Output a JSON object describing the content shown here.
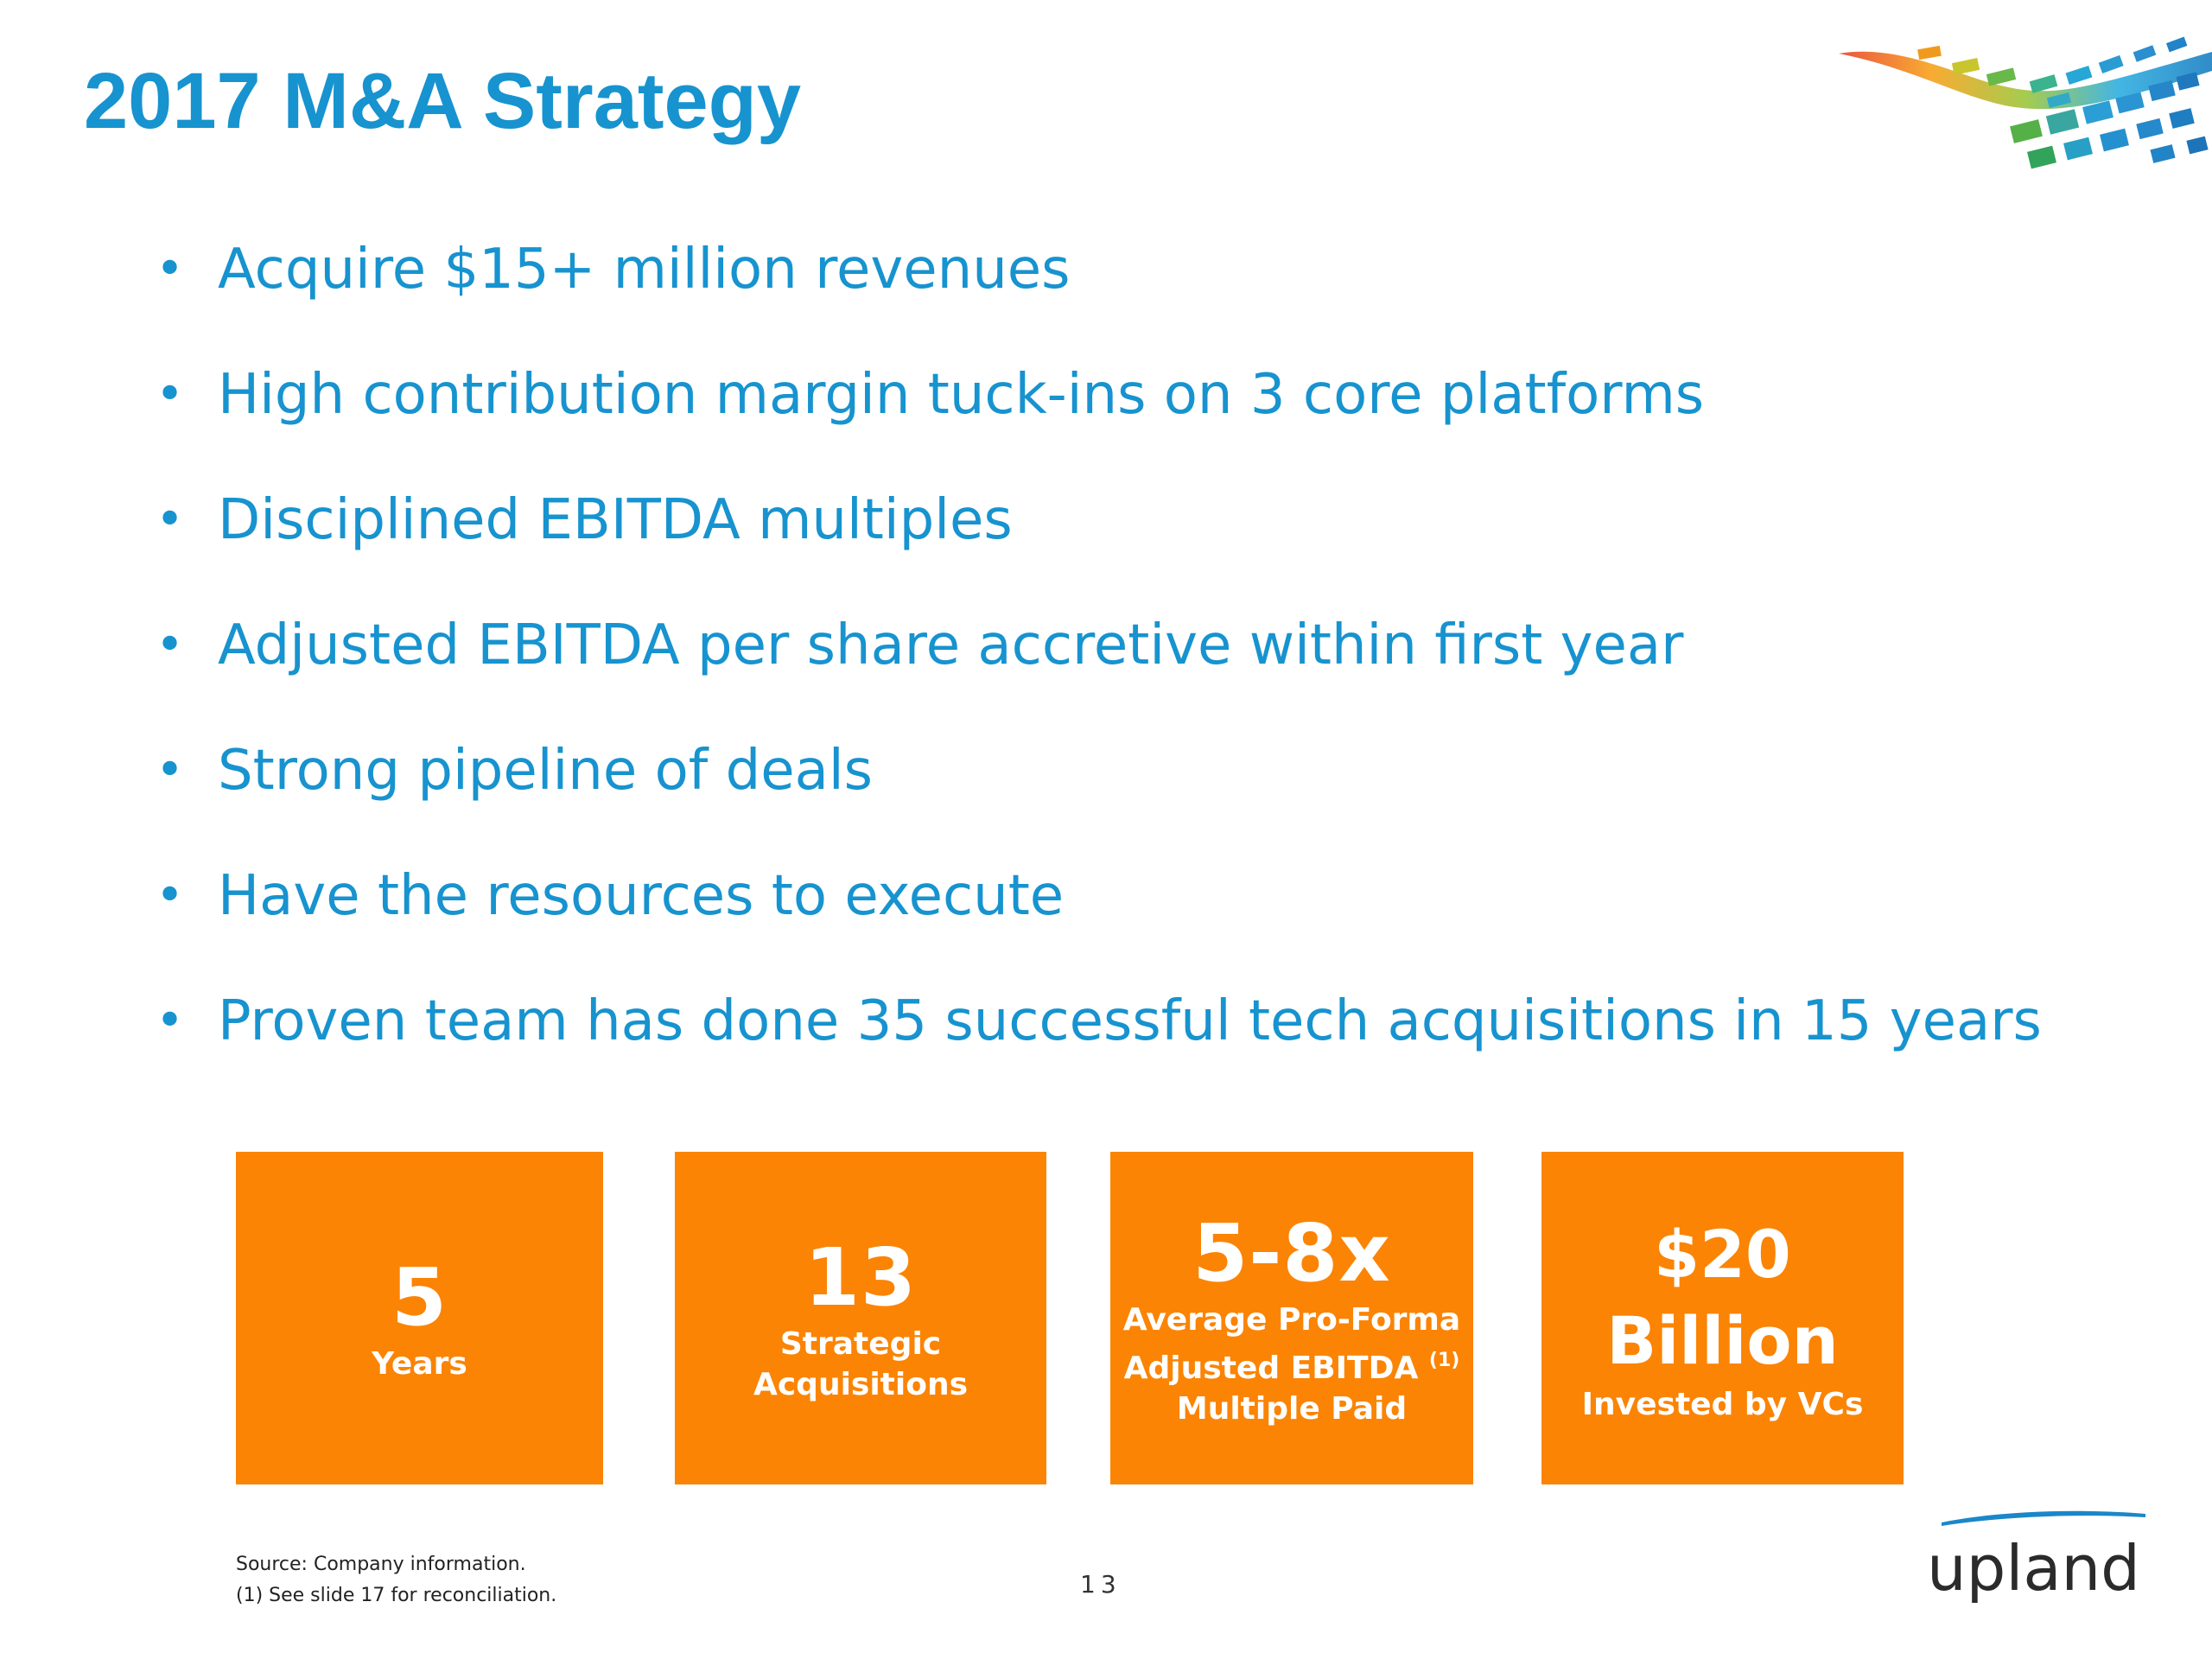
{
  "slide": {
    "title": "2017 M&A Strategy",
    "page_number": "13"
  },
  "bullets": [
    "Acquire $15+ million revenues",
    "High contribution margin tuck-ins on 3 core platforms",
    "Disciplined EBITDA multiples",
    "Adjusted EBITDA per share accretive within first year",
    "Strong pipeline of deals",
    "Have the resources to execute",
    "Proven team has done 35 successful tech acquisitions in 15 years"
  ],
  "bullet_glyph": "•",
  "tiles": [
    {
      "value": "5",
      "label": "Years"
    },
    {
      "value": "13",
      "label_line1": "Strategic",
      "label_line2": "Acquisitions"
    },
    {
      "value": "5-8x",
      "label_line1": "Average Pro-Forma",
      "label_line2": "Adjusted EBITDA",
      "label_sup": "(1)",
      "label_line3": "Multiple Paid"
    },
    {
      "value": "$20",
      "value_line2": "Billion",
      "label": "Invested by VCs"
    }
  ],
  "footnotes": {
    "source": "Source: Company information.",
    "note1": "(1) See slide 17 for reconciliation."
  },
  "brand": {
    "name": "upland",
    "logo_icon": "colorful-mosaic-wave-icon"
  },
  "colors": {
    "title": "#1793cf",
    "bullet_text": "#1793cf",
    "tile_background": "#fb8405",
    "tile_text": "#ffffff"
  }
}
